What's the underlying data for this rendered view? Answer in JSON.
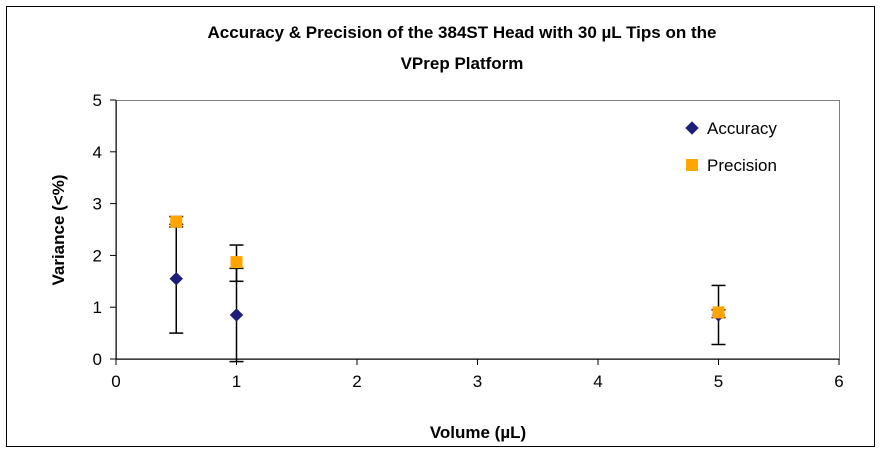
{
  "chart_data": {
    "type": "scatter",
    "title_lines": [
      "Accuracy & Precision of the 384ST Head with 30 µL Tips on the",
      "VPrep Platform"
    ],
    "xlabel": "Volume (µL)",
    "ylabel": "Variance (<%)",
    "xlim": [
      0,
      6
    ],
    "ylim": [
      0,
      5
    ],
    "xticks": [
      "0",
      "1",
      "2",
      "3",
      "4",
      "5",
      "6"
    ],
    "yticks": [
      "0",
      "1",
      "2",
      "3",
      "4",
      "5"
    ],
    "grid": false,
    "legend_position": "top-right",
    "series": [
      {
        "name": "Accuracy",
        "marker": "diamond",
        "color": "#1f1f7a",
        "points": [
          {
            "x": 0.5,
            "y": 1.55,
            "err_low": 0.5,
            "err_high": 2.6
          },
          {
            "x": 1.0,
            "y": 0.85,
            "err_low": -0.05,
            "err_high": 1.75
          },
          {
            "x": 5.0,
            "y": 0.85,
            "err_low": 0.28,
            "err_high": 1.42
          }
        ]
      },
      {
        "name": "Precision",
        "marker": "square",
        "color": "#ffa500",
        "points": [
          {
            "x": 0.5,
            "y": 2.65,
            "err_low": 2.55,
            "err_high": 2.75
          },
          {
            "x": 1.0,
            "y": 1.87,
            "err_low": 1.5,
            "err_high": 2.2
          },
          {
            "x": 5.0,
            "y": 0.9,
            "err_low": 0.8,
            "err_high": 0.95
          }
        ]
      }
    ]
  }
}
